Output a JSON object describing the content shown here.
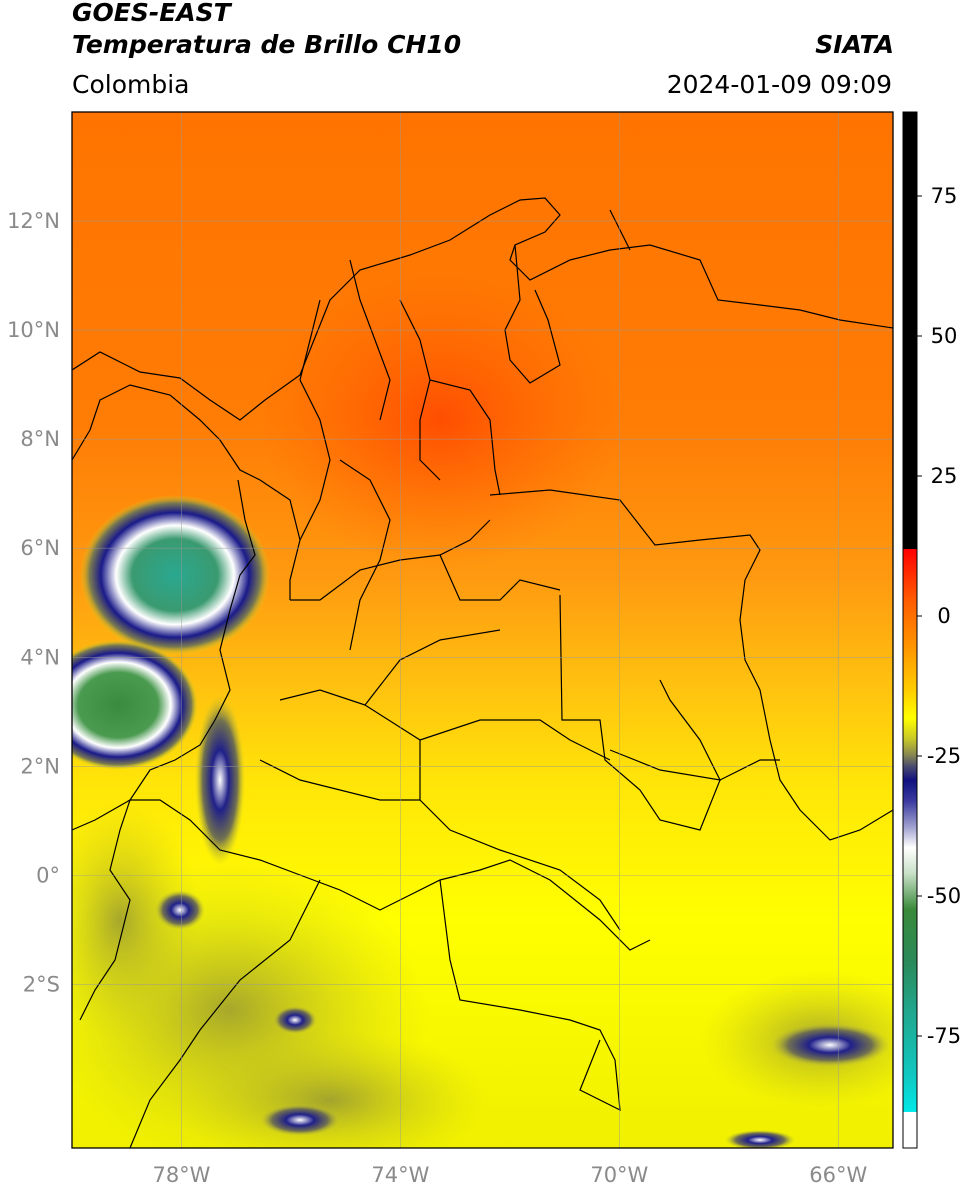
{
  "header": {
    "satellite": "GOES-EAST",
    "product": "Temperatura de Brillo CH10",
    "region": "Colombia",
    "organization": "SIATA",
    "datetime": "2024-01-09 09:09"
  },
  "map": {
    "lon_range": [
      -80,
      -65
    ],
    "lat_range": [
      -5,
      14
    ],
    "lon_ticks": [
      {
        "value": -78,
        "label": "78°W"
      },
      {
        "value": -74,
        "label": "74°W"
      },
      {
        "value": -70,
        "label": "70°W"
      },
      {
        "value": -66,
        "label": "66°W"
      }
    ],
    "lat_ticks": [
      {
        "value": 12,
        "label": "12°N"
      },
      {
        "value": 10,
        "label": "10°N"
      },
      {
        "value": 8,
        "label": "8°N"
      },
      {
        "value": 6,
        "label": "6°N"
      },
      {
        "value": 4,
        "label": "4°N"
      },
      {
        "value": 2,
        "label": "2°N"
      },
      {
        "value": 0,
        "label": "0°"
      },
      {
        "value": -2,
        "label": "2°S"
      }
    ]
  },
  "colorbar": {
    "range": [
      -95,
      90
    ],
    "ticks": [
      {
        "value": 75,
        "label": "75"
      },
      {
        "value": 50,
        "label": "50"
      },
      {
        "value": 25,
        "label": "25"
      },
      {
        "value": 0,
        "label": "0"
      },
      {
        "value": -25,
        "label": "-25"
      },
      {
        "value": -50,
        "label": "-50"
      },
      {
        "value": -75,
        "label": "-75"
      }
    ],
    "colors": {
      "black": "#000000",
      "red": "#ff1a00",
      "orange": "#ff7a00",
      "yellow": "#ffff00",
      "olive": "#8a8a40",
      "navy": "#101080",
      "white": "#ffffff",
      "green": "#2a8a3a",
      "teal": "#20b0a0",
      "cyan": "#00e0e0"
    }
  }
}
